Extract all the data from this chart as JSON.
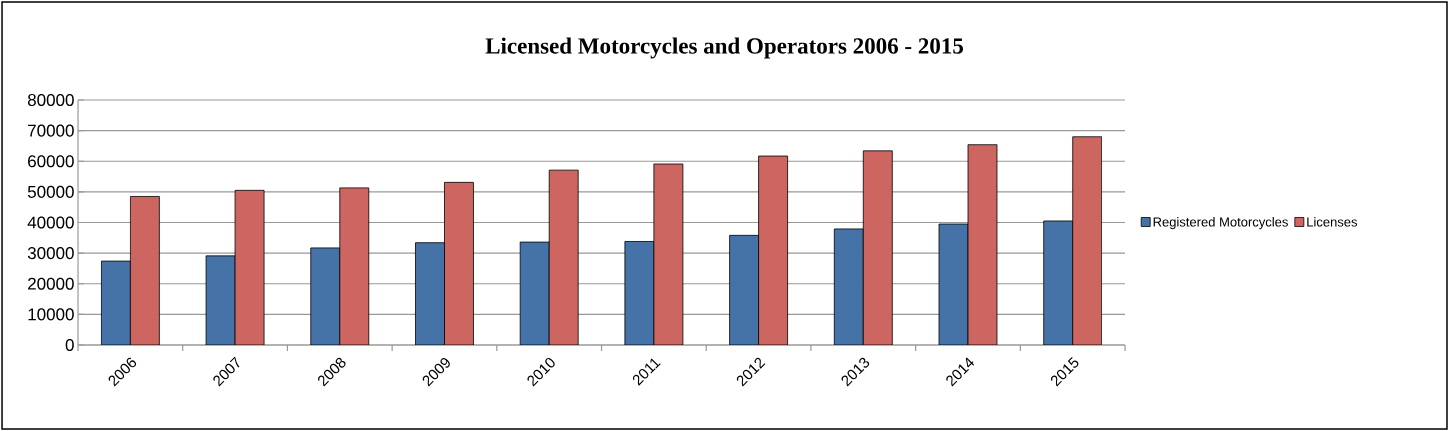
{
  "chart_data": {
    "type": "bar",
    "title": "Licensed Motorcycles and Operators 2006 - 2015",
    "categories": [
      "2006",
      "2007",
      "2008",
      "2009",
      "2010",
      "2011",
      "2012",
      "2013",
      "2014",
      "2015"
    ],
    "series": [
      {
        "name": "Registered Motorcycles",
        "color": "#4573a7",
        "values": [
          27400,
          29100,
          31700,
          33400,
          33600,
          33800,
          35800,
          37900,
          39500,
          40500
        ]
      },
      {
        "name": "Licenses",
        "color": "#cd6660",
        "values": [
          48500,
          50500,
          51300,
          53100,
          57100,
          59100,
          61700,
          63400,
          65400,
          68000
        ]
      }
    ],
    "ylim": [
      0,
      80000
    ],
    "yticks": [
      0,
      10000,
      20000,
      30000,
      40000,
      50000,
      60000,
      70000,
      80000
    ],
    "grid": "y",
    "legend": "right"
  }
}
